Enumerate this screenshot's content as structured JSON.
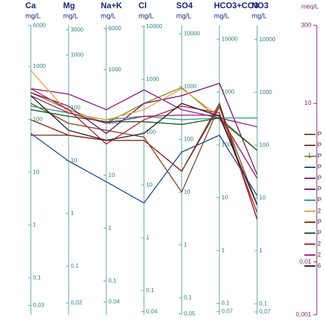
{
  "chart_data": {
    "type": "line",
    "log_scale": true,
    "categories": [
      "Ca",
      "Mg",
      "Na+K",
      "Cl",
      "SO4",
      "HCO3+CO3",
      "NO3"
    ],
    "ylabel": "meq/L",
    "ylim": [
      0.001,
      300
    ],
    "yticks": [
      300,
      10,
      1,
      {
        "value": 0.01,
        "label": "0,01"
      },
      {
        "value": 0.001,
        "label": "0,001"
      }
    ],
    "columns": [
      {
        "unit": "mg/L",
        "ylim": [
          0.02,
          6000
        ],
        "yticks": [
          6000,
          1000,
          100,
          10,
          1,
          {
            "value": 0.1,
            "label": "0,1"
          },
          {
            "value": 0.03,
            "label": "0,03"
          }
        ]
      },
      {
        "unit": "mg/L",
        "ylim": [
          0.012,
          3650
        ],
        "yticks": [
          3000,
          1000,
          100,
          10,
          1,
          {
            "value": 0.1,
            "label": "0,1"
          },
          {
            "value": 0.02,
            "label": "0,02"
          }
        ]
      },
      {
        "unit": "mg/L",
        "ylim": [
          0.023,
          6900
        ],
        "yticks": [
          6000,
          1000,
          100,
          10,
          1,
          {
            "value": 0.1,
            "label": "0,1"
          },
          {
            "value": 0.04,
            "label": "0,04"
          }
        ]
      },
      {
        "unit": "mg/L",
        "ylim": [
          0.035,
          10600
        ],
        "yticks": [
          10000,
          1000,
          100,
          10,
          1,
          {
            "value": 0.1,
            "label": "0,1"
          },
          {
            "value": 0.04,
            "label": "0,04"
          }
        ]
      },
      {
        "unit": "mg/L",
        "ylim": [
          0.048,
          14400
        ],
        "yticks": [
          10000,
          1000,
          100,
          10,
          1,
          {
            "value": 0.1,
            "label": "0,1"
          },
          {
            "value": 0.05,
            "label": "0,05"
          }
        ]
      },
      {
        "unit": "mg/L",
        "ylim": [
          0.061,
          18300
        ],
        "yticks": [
          10000,
          1000,
          100,
          10,
          1,
          {
            "value": 0.1,
            "label": "0,1"
          },
          {
            "value": 0.07,
            "label": "0,07"
          }
        ]
      },
      {
        "unit": "mg/L",
        "ylim": [
          0.062,
          18600
        ],
        "yticks": [
          10000,
          1000,
          100,
          10,
          1,
          {
            "value": 0.1,
            "label": "0,1"
          },
          {
            "value": 0.07,
            "label": "0,07"
          }
        ]
      }
    ],
    "series": [
      {
        "name": "P",
        "color": "#7b4a2a",
        "values": [
          10,
          4.2,
          3.1,
          2.3,
          0.21,
          8.9,
          0.12
        ]
      },
      {
        "name": "P",
        "color": "#6d3b1f",
        "values": [
          2.5,
          2.5,
          2.0,
          2.0,
          0.52,
          10,
          0.064
        ]
      },
      {
        "name": "P",
        "color": "#8a8a2a",
        "values": [
          16,
          7.6,
          4.2,
          10,
          20,
          4.9,
          1.3
        ]
      },
      {
        "name": "P",
        "color": "#1f4e9a",
        "values": [
          2.7,
          0.81,
          0.33,
          0.13,
          1.2,
          2.5,
          0.18
        ]
      },
      {
        "name": "P",
        "color": "#8b1a8b",
        "values": [
          19,
          15,
          7.6,
          18,
          7.6,
          5.3,
          3.6
        ]
      },
      {
        "name": "P",
        "color": "#6a1b6a",
        "values": [
          16,
          8.9,
          2.7,
          10,
          14,
          24,
          0.45
        ]
      },
      {
        "name": "P",
        "color": "#2a9a8a",
        "values": [
          8.9,
          6.6,
          4.9,
          5.7,
          4.9,
          5.3,
          5.3
        ]
      },
      {
        "name": "2",
        "color": "#e8a040",
        "values": [
          42,
          6.6,
          4.9,
          7.6,
          19,
          5.7,
          0.38
        ]
      },
      {
        "name": "P",
        "color": "#8b2a1a",
        "values": [
          4.9,
          2.5,
          2.0,
          2.0,
          0.52,
          8.9,
          0.064
        ]
      },
      {
        "name": "P",
        "color": "#1a5a1a",
        "values": [
          7.6,
          5.7,
          4.5,
          4.5,
          4.0,
          5.3,
          1.3
        ]
      },
      {
        "name": "2",
        "color": "#c0203a",
        "values": [
          19,
          7.6,
          1.7,
          4.9,
          8.9,
          6.6,
          0.086
        ]
      },
      {
        "name": "2",
        "color": "#a0207a",
        "values": [
          14,
          6.6,
          4.2,
          5.7,
          6.0,
          6.0,
          0.38
        ]
      },
      {
        "name": "6",
        "color": "#222222",
        "values": [
          14,
          3.1,
          2.0,
          2.7,
          10,
          5.7,
          0.12
        ]
      }
    ]
  }
}
